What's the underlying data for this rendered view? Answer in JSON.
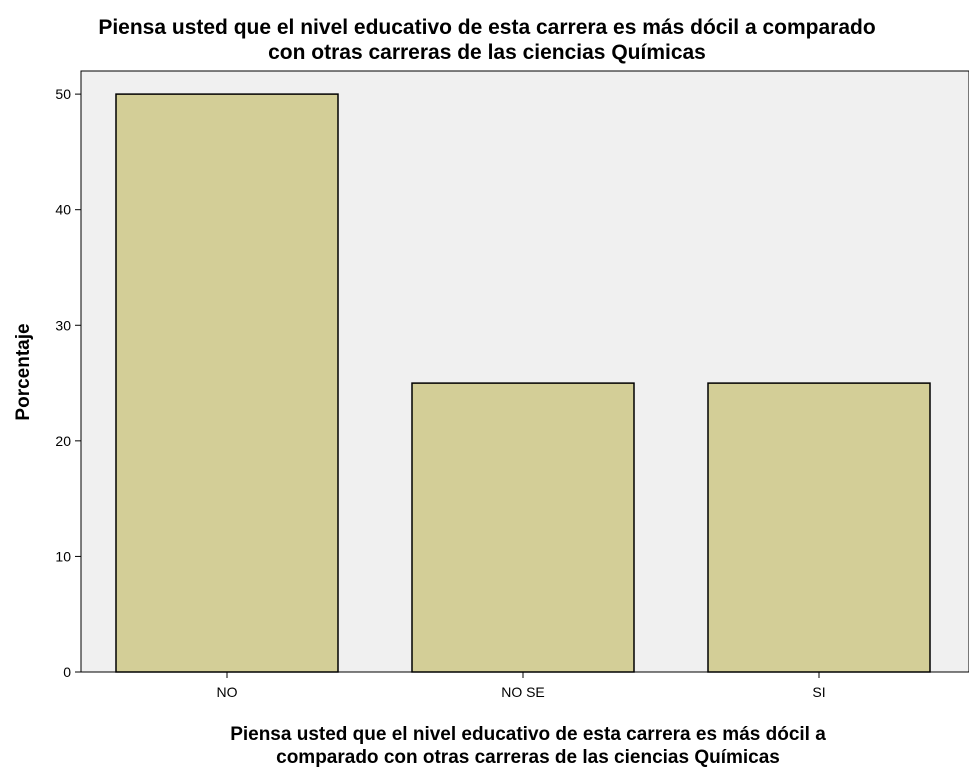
{
  "chart_data": {
    "type": "bar",
    "title": [
      "Piensa usted que el nivel educativo de esta carrera es más dócil a comparado",
      "con otras carreras de las ciencias Químicas"
    ],
    "xlabel": [
      "Piensa usted que el nivel educativo de esta carrera es más dócil a",
      "comparado con otras carreras de las ciencias Químicas"
    ],
    "ylabel": "Porcentaje",
    "categories": [
      "NO",
      "NO SE",
      "SI"
    ],
    "values": [
      50,
      25,
      25
    ],
    "ylim": [
      0,
      52
    ],
    "yticks": [
      0,
      10,
      20,
      30,
      40,
      50
    ],
    "grid": false,
    "legend": "none",
    "colors": {
      "bar_fill": "#d3ce97",
      "bar_stroke": "#000000",
      "plot_background": "#f0f0f0",
      "axis": "#000000"
    }
  }
}
